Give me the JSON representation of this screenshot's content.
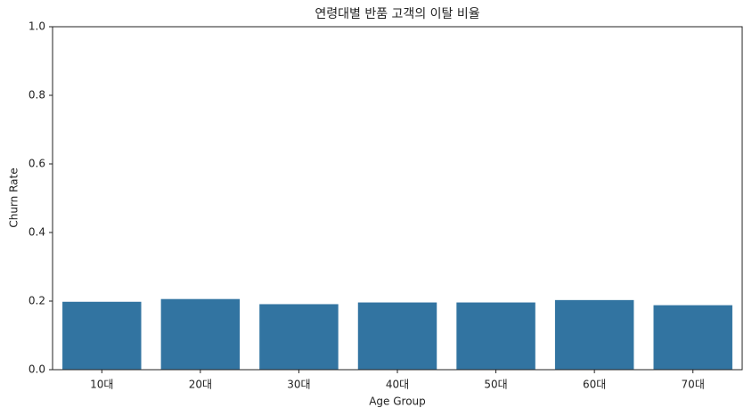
{
  "chart_data": {
    "type": "bar",
    "title": "연령대별 반품 고객의 이탈 비율",
    "x_label": "Age Group",
    "y_label": "Churn Rate",
    "categories": [
      "10대",
      "20대",
      "30대",
      "40대",
      "50대",
      "60대",
      "70대"
    ],
    "values": [
      0.198,
      0.206,
      0.191,
      0.196,
      0.196,
      0.203,
      0.188
    ],
    "color": "#3274a1",
    "ylim": [
      0,
      1
    ],
    "yticks": [
      {
        "value": 0,
        "label": "0.0"
      },
      0.2,
      0.4,
      0.6,
      0.8,
      {
        "value": 1,
        "label": "1.0"
      }
    ]
  }
}
